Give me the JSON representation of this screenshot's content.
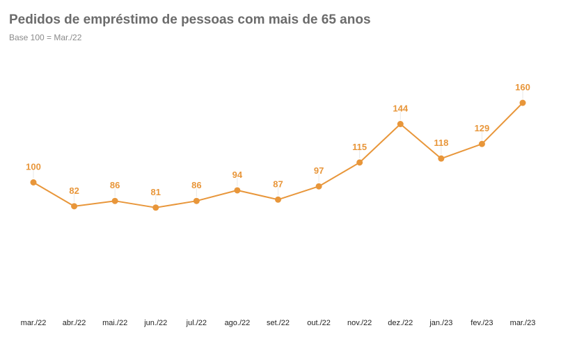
{
  "chart_data": {
    "type": "line",
    "title": "Pedidos de empréstimo de pessoas com mais de 65 anos",
    "subtitle": "Base 100 = Mar./22",
    "categories": [
      "mar./22",
      "abr./22",
      "mai./22",
      "jun./22",
      "jul./22",
      "ago./22",
      "set./22",
      "out./22",
      "nov./22",
      "dez./22",
      "jan./23",
      "fev./23",
      "mar./23"
    ],
    "series": [
      {
        "values": [
          100,
          82,
          86,
          81,
          86,
          94,
          87,
          97,
          115,
          144,
          118,
          129,
          160
        ]
      }
    ],
    "data_labels": true,
    "grid": false,
    "legend": "none",
    "colors": {
      "line": "#e8963a",
      "marker": "#e8963a",
      "label": "#e8963a"
    }
  }
}
